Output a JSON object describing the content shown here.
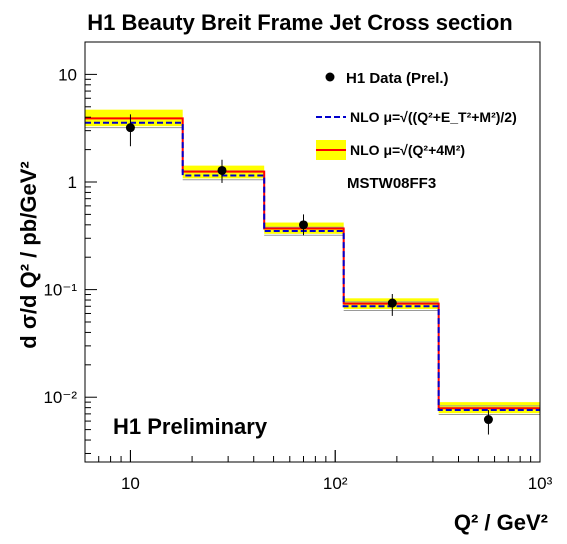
{
  "chart_data": {
    "type": "step",
    "title": "H1 Beauty Breit Frame Jet Cross section",
    "xlabel": "Q²   / GeV²",
    "ylabel": "d σ/d Q² / pb/GeV²",
    "xscale": "log",
    "yscale": "log",
    "xlim": [
      6,
      1000
    ],
    "ylim": [
      0.0025,
      20
    ],
    "x_ticks": [
      "10",
      "10²",
      "10³"
    ],
    "y_ticks": [
      "10⁻²",
      "10⁻¹",
      "1",
      "10"
    ],
    "bins": [
      [
        6,
        18
      ],
      [
        18,
        45
      ],
      [
        45,
        110
      ],
      [
        110,
        320
      ],
      [
        320,
        1000
      ]
    ],
    "series": [
      {
        "name": "H1 Data (Prel.)",
        "type": "scatter",
        "x": [
          10,
          28,
          70,
          190,
          560
        ],
        "y": [
          3.2,
          1.28,
          0.4,
          0.075,
          0.0062
        ],
        "y_err_low": [
          1.05,
          0.3,
          0.08,
          0.018,
          0.0017
        ],
        "y_err_high": [
          1.05,
          0.33,
          0.1,
          0.016,
          0.0014
        ],
        "color": "#000000"
      },
      {
        "name": "NLO μ=√((Q²+E_T²+M²)/2)",
        "type": "step",
        "values": [
          3.55,
          1.15,
          0.35,
          0.07,
          0.0076
        ],
        "band_low": [
          3.2,
          1.05,
          0.32,
          0.064,
          0.0069
        ],
        "band_high": [
          3.9,
          1.27,
          0.38,
          0.077,
          0.0083
        ],
        "color": "#0000cc",
        "band_color": "#c8c8c8",
        "line_style": "dashed"
      },
      {
        "name": "NLO μ=√(Q²+4M²)",
        "type": "step",
        "values": [
          3.9,
          1.25,
          0.37,
          0.074,
          0.0079
        ],
        "band_low": [
          3.3,
          1.08,
          0.33,
          0.066,
          0.0071
        ],
        "band_high": [
          4.7,
          1.42,
          0.42,
          0.083,
          0.009
        ],
        "color": "#ff0000",
        "band_color": "#ffff00",
        "line_style": "solid"
      }
    ],
    "legend": {
      "position": "top-right",
      "extra_text": "MSTW08FF3"
    },
    "annotation": "H1 Preliminary",
    "grid": false
  }
}
